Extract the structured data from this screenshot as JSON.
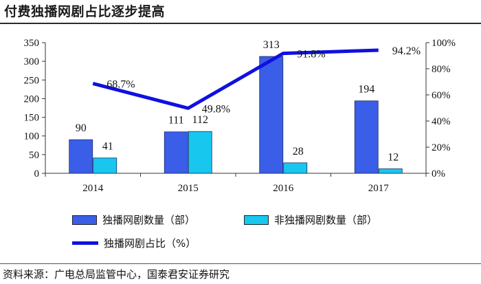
{
  "header": {
    "title": "付费独播网剧占比逐步提高"
  },
  "footer": {
    "source": "资料来源：广电总局监管中心，国泰君安证券研究"
  },
  "colors": {
    "series1": "#3b5ee8",
    "series2": "#17c7ee",
    "line": "#1010e0",
    "axis": "#333333"
  },
  "chart_data": {
    "type": "bar",
    "title": "付费独播网剧占比逐步提高",
    "categories": [
      "2014",
      "2015",
      "2016",
      "2017"
    ],
    "series": [
      {
        "name": "独播网剧数量（部）",
        "type": "bar",
        "axis": "left",
        "values": [
          90,
          111,
          313,
          194
        ]
      },
      {
        "name": "非独播网剧数量（部）",
        "type": "bar",
        "axis": "left",
        "values": [
          41,
          112,
          28,
          12
        ]
      },
      {
        "name": "独播网剧占比（%）",
        "type": "line",
        "axis": "right",
        "values": [
          68.7,
          49.8,
          91.8,
          94.2
        ]
      }
    ],
    "data_labels": {
      "series1": [
        "90",
        "111",
        "313",
        "194"
      ],
      "series2": [
        "41",
        "112",
        "28",
        "12"
      ],
      "line": [
        "68.7%",
        "49.8%",
        "91.8%",
        "94.2%"
      ]
    },
    "ylim": [
      0,
      350
    ],
    "yticks": [
      0,
      50,
      100,
      150,
      200,
      250,
      300,
      350
    ],
    "y2lim": [
      0,
      100
    ],
    "y2ticks": [
      "0%",
      "20%",
      "40%",
      "60%",
      "80%",
      "100%"
    ],
    "legend": "bottom",
    "grid": false
  }
}
